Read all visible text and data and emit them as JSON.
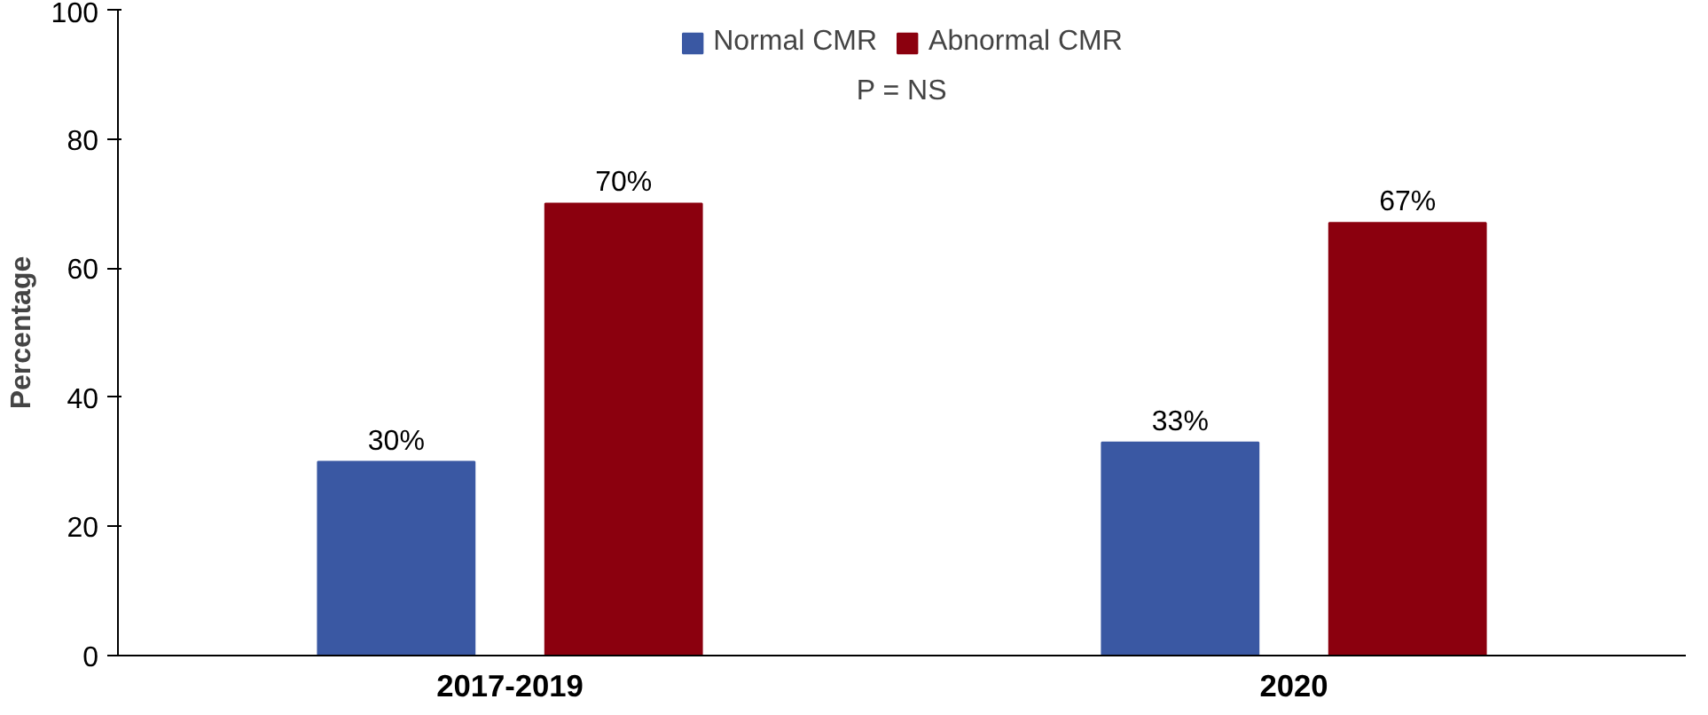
{
  "chart_data": {
    "type": "bar",
    "ylabel": "Percentage",
    "categories": [
      "2017-2019",
      "2020"
    ],
    "series": [
      {
        "name": "Normal CMR",
        "color": "#3a58a3",
        "values": [
          30,
          33
        ],
        "value_labels": [
          "30%",
          "33%"
        ]
      },
      {
        "name": "Abnormal CMR",
        "color": "#8b000e",
        "values": [
          70,
          67
        ],
        "value_labels": [
          "70%",
          "67%"
        ]
      }
    ],
    "ylim": [
      0,
      100
    ],
    "yticks": [
      0,
      20,
      40,
      60,
      80,
      100
    ],
    "grid": false,
    "legend": "top",
    "annotations": [
      "P = NS"
    ]
  }
}
